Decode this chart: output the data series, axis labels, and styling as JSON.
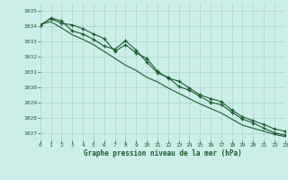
{
  "title": "Graphe pression niveau de la mer (hPa)",
  "background_color": "#cceee8",
  "grid_color": "#aad4cc",
  "line_color": "#1a5c30",
  "xlim": [
    0,
    23
  ],
  "ylim": [
    1026.5,
    1035.5
  ],
  "yticks": [
    1027,
    1028,
    1029,
    1030,
    1031,
    1032,
    1033,
    1034,
    1035
  ],
  "xticks": [
    0,
    1,
    2,
    3,
    4,
    5,
    6,
    7,
    8,
    9,
    10,
    11,
    12,
    13,
    14,
    15,
    16,
    17,
    18,
    19,
    20,
    21,
    22,
    23
  ],
  "series1_x": [
    0,
    1,
    2,
    3,
    4,
    5,
    6,
    7,
    8,
    9,
    10,
    11,
    12,
    13,
    14,
    15,
    16,
    17,
    18,
    19,
    20,
    21,
    22,
    23
  ],
  "series1": [
    1034.1,
    1034.5,
    1034.2,
    1034.1,
    1033.85,
    1033.5,
    1033.2,
    1032.35,
    1032.8,
    1032.25,
    1031.9,
    1031.05,
    1030.6,
    1030.4,
    1029.95,
    1029.5,
    1029.25,
    1029.05,
    1028.5,
    1028.05,
    1027.8,
    1027.55,
    1027.25,
    1027.1
  ],
  "series2": [
    1034.05,
    1034.55,
    1034.35,
    1033.7,
    1033.5,
    1033.15,
    1032.7,
    1032.5,
    1033.05,
    1032.45,
    1031.65,
    1030.95,
    1030.65,
    1030.05,
    1029.8,
    1029.4,
    1029.0,
    1028.85,
    1028.35,
    1027.9,
    1027.65,
    1027.3,
    1027.0,
    1026.85
  ],
  "series3": [
    1034.15,
    1034.3,
    1033.9,
    1033.45,
    1033.15,
    1032.8,
    1032.35,
    1031.9,
    1031.45,
    1031.1,
    1030.65,
    1030.35,
    1029.95,
    1029.6,
    1029.25,
    1028.9,
    1028.6,
    1028.3,
    1027.9,
    1027.5,
    1027.3,
    1027.1,
    1026.9,
    1026.75
  ]
}
